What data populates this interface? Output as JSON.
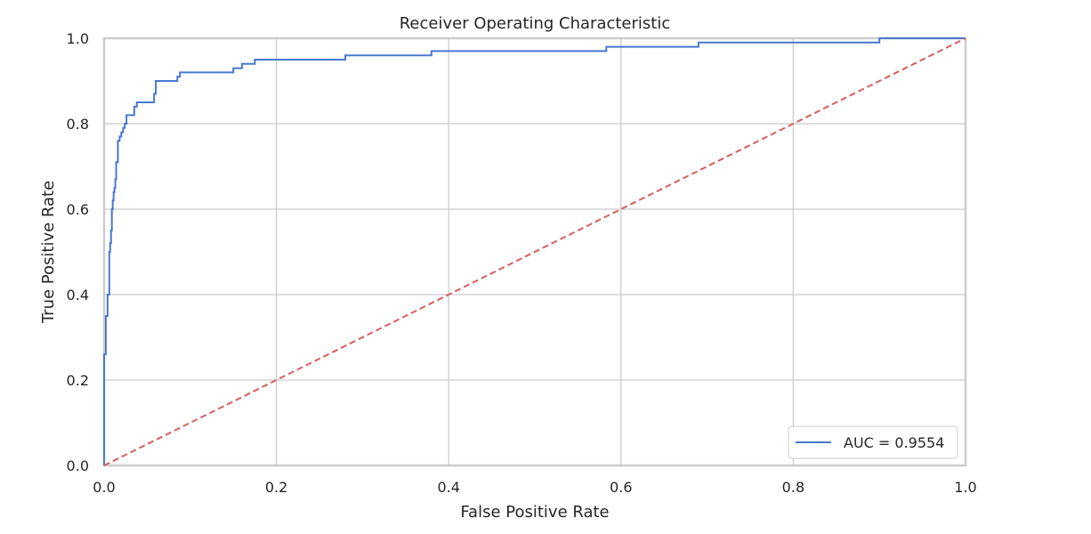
{
  "chart_data": {
    "type": "line",
    "title": "Receiver Operating Characteristic",
    "xlabel": "False Positive Rate",
    "ylabel": "True Positive Rate",
    "xlim": [
      0.0,
      1.0
    ],
    "ylim": [
      0.0,
      1.0
    ],
    "x_ticks": [
      "0.0",
      "0.2",
      "0.4",
      "0.6",
      "0.8",
      "1.0"
    ],
    "y_ticks": [
      "0.0",
      "0.2",
      "0.4",
      "0.6",
      "0.8",
      "1.0"
    ],
    "grid": true,
    "legend_position": "lower-right",
    "series": [
      {
        "name": "AUC = 0.9554",
        "color": "#4878d0",
        "style": "solid",
        "points": [
          [
            0.0,
            0.0
          ],
          [
            0.0,
            0.26
          ],
          [
            0.002,
            0.26
          ],
          [
            0.002,
            0.35
          ],
          [
            0.004,
            0.35
          ],
          [
            0.004,
            0.4
          ],
          [
            0.006,
            0.4
          ],
          [
            0.006,
            0.5
          ],
          [
            0.007,
            0.5
          ],
          [
            0.007,
            0.52
          ],
          [
            0.008,
            0.52
          ],
          [
            0.008,
            0.55
          ],
          [
            0.009,
            0.55
          ],
          [
            0.009,
            0.6
          ],
          [
            0.01,
            0.6
          ],
          [
            0.01,
            0.62
          ],
          [
            0.011,
            0.62
          ],
          [
            0.011,
            0.64
          ],
          [
            0.012,
            0.64
          ],
          [
            0.012,
            0.65
          ],
          [
            0.013,
            0.65
          ],
          [
            0.013,
            0.67
          ],
          [
            0.014,
            0.67
          ],
          [
            0.014,
            0.71
          ],
          [
            0.016,
            0.71
          ],
          [
            0.016,
            0.76
          ],
          [
            0.018,
            0.76
          ],
          [
            0.018,
            0.77
          ],
          [
            0.02,
            0.77
          ],
          [
            0.02,
            0.78
          ],
          [
            0.022,
            0.78
          ],
          [
            0.022,
            0.79
          ],
          [
            0.024,
            0.79
          ],
          [
            0.024,
            0.8
          ],
          [
            0.026,
            0.8
          ],
          [
            0.026,
            0.82
          ],
          [
            0.035,
            0.82
          ],
          [
            0.035,
            0.84
          ],
          [
            0.038,
            0.84
          ],
          [
            0.038,
            0.85
          ],
          [
            0.058,
            0.85
          ],
          [
            0.058,
            0.87
          ],
          [
            0.06,
            0.87
          ],
          [
            0.06,
            0.9
          ],
          [
            0.085,
            0.9
          ],
          [
            0.085,
            0.91
          ],
          [
            0.088,
            0.91
          ],
          [
            0.088,
            0.92
          ],
          [
            0.15,
            0.92
          ],
          [
            0.15,
            0.93
          ],
          [
            0.16,
            0.93
          ],
          [
            0.16,
            0.94
          ],
          [
            0.175,
            0.94
          ],
          [
            0.175,
            0.95
          ],
          [
            0.28,
            0.95
          ],
          [
            0.28,
            0.96
          ],
          [
            0.38,
            0.96
          ],
          [
            0.38,
            0.97
          ],
          [
            0.583,
            0.97
          ],
          [
            0.583,
            0.98
          ],
          [
            0.69,
            0.98
          ],
          [
            0.69,
            0.99
          ],
          [
            0.9,
            0.99
          ],
          [
            0.9,
            1.0
          ],
          [
            1.0,
            1.0
          ]
        ]
      },
      {
        "color": "#d65f5f",
        "style": "dashed",
        "points": [
          [
            0.0,
            0.0
          ],
          [
            1.0,
            1.0
          ]
        ]
      }
    ]
  }
}
